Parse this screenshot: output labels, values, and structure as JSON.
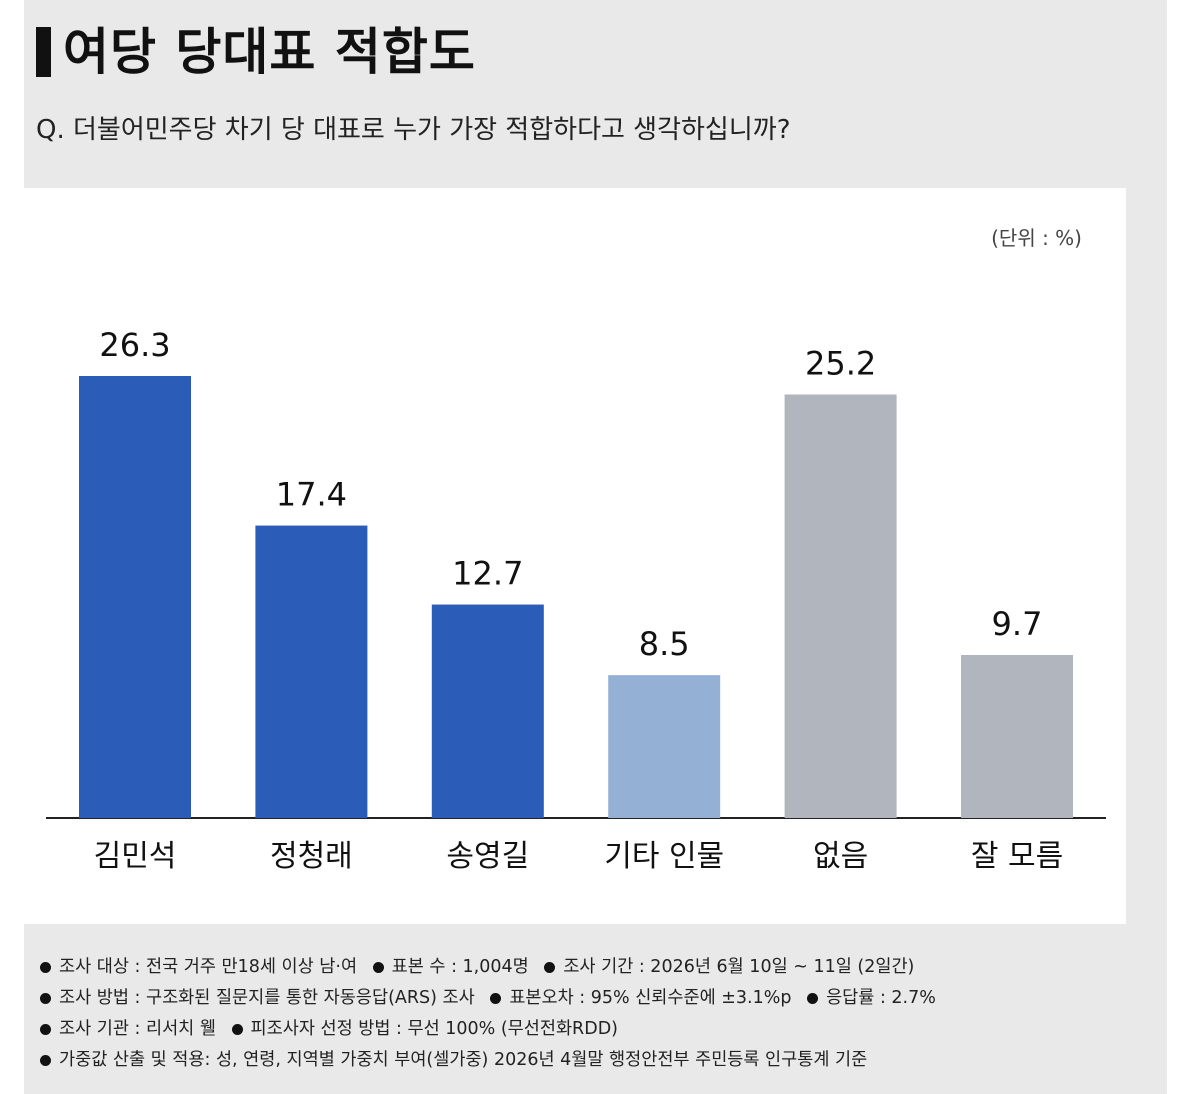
{
  "header": {
    "title": "여당 당대표 적합도",
    "question": "Q. 더불어민주당 차기 당 대표로 누가 가장 적합하다고 생각하십니까?"
  },
  "chart_data": {
    "type": "bar",
    "title": "여당 당대표 적합도",
    "unit_label": "(단위 : %)",
    "categories": [
      "김민석",
      "정청래",
      "송영길",
      "기타 인물",
      "없음",
      "잘 모름"
    ],
    "values": [
      26.3,
      17.4,
      12.7,
      8.5,
      25.2,
      9.7
    ],
    "value_labels": [
      "26.3",
      "17.4",
      "12.7",
      "8.5",
      "25.2",
      "9.7"
    ],
    "colors": [
      "#2a5cb8",
      "#2a5cb8",
      "#2a5cb8",
      "#95b0d5",
      "#b1b5bd",
      "#b1b5bd"
    ],
    "ylim": [
      0,
      26.3
    ],
    "grid": false
  },
  "notes": {
    "line1": [
      "조사 대상 : 전국 거주 만18세 이상 남·여",
      "표본 수 : 1,004명",
      "조사 기간 : 2026년 6월 10일 ~ 11일 (2일간)"
    ],
    "line2": [
      "조사 방법 : 구조화된 질문지를 통한 자동응답(ARS) 조사",
      "표본오차 : 95% 신뢰수준에 ±3.1%p",
      "응답률 : 2.7%"
    ],
    "line3": [
      "조사 기관 : 리서치 웰",
      "피조사자 선정 방법 : 무선 100% (무선전화RDD)"
    ],
    "line4": [
      "가중값 산출 및 적용: 성, 연령, 지역별 가중치 부여(셀가중) 2026년 4월말 행정안전부 주민등록 인구통계 기준"
    ]
  }
}
